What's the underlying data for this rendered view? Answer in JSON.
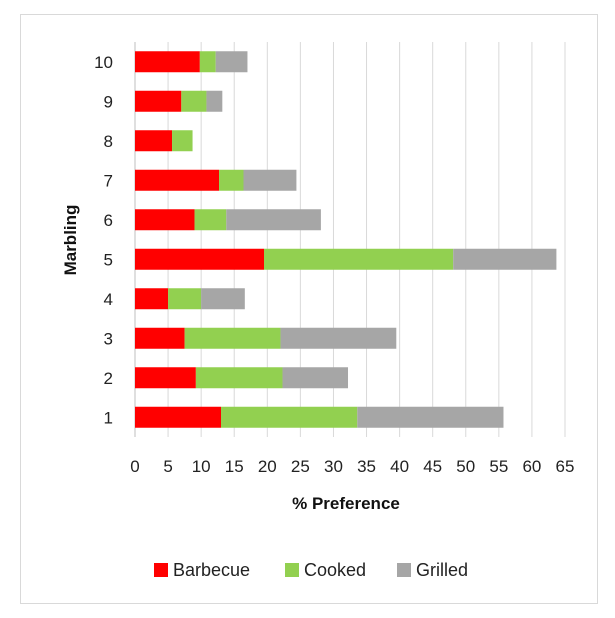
{
  "chart_data": {
    "type": "bar",
    "orientation": "horizontal",
    "stacked": true,
    "categories": [
      "1",
      "2",
      "3",
      "4",
      "5",
      "6",
      "7",
      "8",
      "9",
      "10"
    ],
    "series": [
      {
        "name": "Barbecue",
        "color": "#ff0000",
        "values": [
          13,
          9.2,
          7.5,
          5,
          19.5,
          9,
          12.7,
          5.6,
          7,
          9.8
        ]
      },
      {
        "name": "Cooked",
        "color": "#92d050",
        "values": [
          20.6,
          13.1,
          14.5,
          5,
          28.6,
          4.8,
          3.7,
          3.1,
          3.8,
          2.4
        ]
      },
      {
        "name": "Grilled",
        "color": "#a6a6a6",
        "values": [
          22.1,
          9.9,
          17.5,
          6.6,
          15.6,
          14.3,
          8,
          0,
          2.4,
          4.8
        ]
      }
    ],
    "xlabel": "% Preference",
    "ylabel": "Marbling",
    "xlim": [
      0,
      65
    ],
    "xticks": [
      "0",
      "5",
      "10",
      "15",
      "20",
      "25",
      "30",
      "35",
      "40",
      "45",
      "50",
      "55",
      "60",
      "65"
    ],
    "grid": "vertical",
    "legend": "bottom"
  }
}
